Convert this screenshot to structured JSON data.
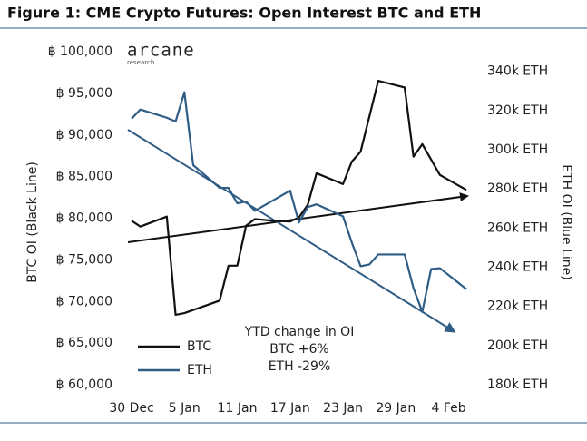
{
  "chart_data": {
    "type": "line",
    "title": "Figure 1: CME Crypto Futures: Open Interest BTC and ETH",
    "logo": "arcane",
    "logo_sub": "research",
    "ylabel": "BTC OI (Black Line)",
    "y2label": "ETH OI (Blue Line)",
    "annotation": [
      "YTD change in OI",
      "BTC +6%",
      "ETH -29%"
    ],
    "xlim": [
      0,
      38
    ],
    "xticks": [
      {
        "value": 0,
        "label": "30 Dec"
      },
      {
        "value": 6,
        "label": "5 Jan"
      },
      {
        "value": 12,
        "label": "11 Jan"
      },
      {
        "value": 18,
        "label": "17 Jan"
      },
      {
        "value": 24,
        "label": "23 Jan"
      },
      {
        "value": 30,
        "label": "29 Jan"
      },
      {
        "value": 36,
        "label": "4 Feb"
      }
    ],
    "ylim": [
      60000,
      100000
    ],
    "yticks": [
      {
        "value": 60000,
        "label": "฿ 60,000"
      },
      {
        "value": 65000,
        "label": "฿ 65,000"
      },
      {
        "value": 70000,
        "label": "฿ 70,000"
      },
      {
        "value": 75000,
        "label": "฿ 75,000"
      },
      {
        "value": 80000,
        "label": "฿ 80,000"
      },
      {
        "value": 85000,
        "label": "฿ 85,000"
      },
      {
        "value": 90000,
        "label": "฿ 90,000"
      },
      {
        "value": 95000,
        "label": "฿ 95,000"
      },
      {
        "value": 100000,
        "label": "฿ 100,000"
      }
    ],
    "y2lim": [
      180000,
      350000
    ],
    "y2ticks": [
      {
        "value": 180000,
        "label": "180k ETH"
      },
      {
        "value": 200000,
        "label": "200k ETH"
      },
      {
        "value": 220000,
        "label": "220k ETH"
      },
      {
        "value": 240000,
        "label": "240k ETH"
      },
      {
        "value": 260000,
        "label": "260k ETH"
      },
      {
        "value": 280000,
        "label": "280k ETH"
      },
      {
        "value": 300000,
        "label": "300k ETH"
      },
      {
        "value": 320000,
        "label": "320k ETH"
      },
      {
        "value": 340000,
        "label": "340k ETH"
      }
    ],
    "series": [
      {
        "name": "BTC",
        "color": "#111111",
        "x": [
          0,
          1,
          4,
          5,
          6,
          10,
          11,
          12,
          13,
          14,
          16,
          18,
          19,
          20,
          21,
          24,
          25,
          26,
          28,
          31,
          32,
          33,
          35,
          38
        ],
        "values": [
          79700,
          79000,
          80200,
          68400,
          68600,
          70100,
          74300,
          74300,
          79100,
          79900,
          79700,
          79600,
          80100,
          81600,
          85400,
          84100,
          86800,
          88000,
          96500,
          95700,
          87400,
          88900,
          85200,
          83400
        ]
      },
      {
        "name": "ETH",
        "color": "#2f5d86",
        "axis": "y2",
        "x": [
          0,
          1,
          3,
          4,
          5,
          6,
          7,
          10,
          11,
          12,
          13,
          14,
          18,
          19,
          20,
          21,
          24,
          25,
          26,
          27,
          28,
          31,
          32,
          33,
          34,
          35,
          38
        ],
        "values": [
          315800,
          320500,
          317700,
          316300,
          314400,
          329300,
          292100,
          280500,
          280500,
          272600,
          273500,
          268800,
          279100,
          262800,
          270700,
          272100,
          266000,
          252600,
          240500,
          241400,
          246500,
          246500,
          229300,
          217200,
          239100,
          239500,
          228800
        ]
      }
    ]
  }
}
